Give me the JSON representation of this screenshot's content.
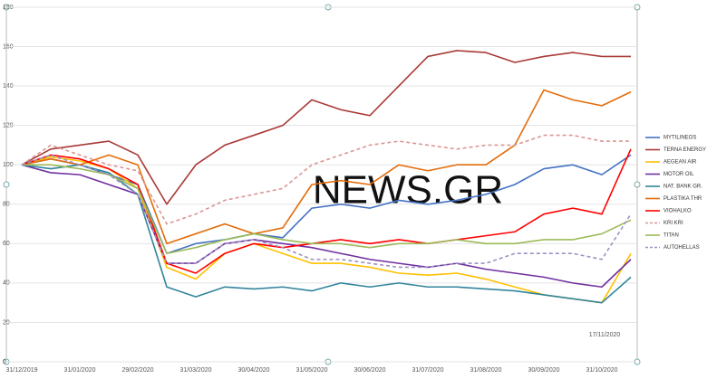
{
  "chart_data": {
    "type": "line",
    "watermark": "NEWS.GR",
    "annotation": "17/11/2020",
    "categories": [
      "31/12/2019",
      null,
      "31/01/2020",
      null,
      "29/02/2020",
      null,
      "31/03/2020",
      null,
      "30/04/2020",
      null,
      "31/05/2020",
      null,
      "30/06/2020",
      null,
      "31/07/2020",
      null,
      "31/08/2020",
      null,
      "30/09/2020",
      null,
      "31/10/2020",
      null
    ],
    "ylim": [
      0,
      180
    ],
    "yticks": [
      0,
      20,
      40,
      60,
      80,
      100,
      120,
      140,
      160,
      180
    ],
    "grid": true,
    "legend": "right",
    "series": [
      {
        "name": "MYTILINEOS",
        "color": "#4472c4",
        "values": [
          100,
          103,
          100,
          95,
          90,
          55,
          60,
          62,
          65,
          63,
          78,
          80,
          78,
          82,
          80,
          82,
          85,
          90,
          98,
          100,
          95,
          105
        ]
      },
      {
        "name": "TERNA ENERGY",
        "color": "#a93a36",
        "values": [
          100,
          108,
          110,
          112,
          105,
          80,
          100,
          110,
          115,
          120,
          133,
          128,
          125,
          140,
          155,
          158,
          157,
          152,
          155,
          157,
          155,
          155
        ]
      },
      {
        "name": "AEGEAN AIR",
        "color": "#ffc000",
        "values": [
          100,
          104,
          102,
          98,
          88,
          48,
          42,
          55,
          60,
          55,
          50,
          50,
          48,
          45,
          44,
          45,
          42,
          38,
          34,
          32,
          30,
          55
        ]
      },
      {
        "name": "MOTOR OIL",
        "color": "#7030a0",
        "values": [
          100,
          96,
          95,
          90,
          85,
          50,
          50,
          60,
          62,
          60,
          58,
          55,
          52,
          50,
          48,
          50,
          47,
          45,
          43,
          40,
          38,
          52
        ]
      },
      {
        "name": "NAT. BANK GR.",
        "color": "#31859c",
        "values": [
          100,
          98,
          100,
          96,
          85,
          38,
          33,
          38,
          37,
          38,
          36,
          40,
          38,
          40,
          38,
          38,
          37,
          36,
          34,
          32,
          30,
          43
        ]
      },
      {
        "name": "PLASTIKA THR",
        "color": "#e46c0a",
        "values": [
          100,
          103,
          100,
          105,
          100,
          60,
          65,
          70,
          65,
          68,
          90,
          92,
          90,
          100,
          97,
          100,
          100,
          110,
          138,
          133,
          130,
          137
        ]
      },
      {
        "name": "VIOHALKO",
        "color": "#ff0000",
        "values": [
          100,
          105,
          103,
          98,
          90,
          50,
          45,
          55,
          60,
          58,
          60,
          62,
          60,
          62,
          60,
          62,
          64,
          66,
          75,
          78,
          75,
          108
        ]
      },
      {
        "name": "KRI KRI",
        "color": "#da9694",
        "dashed": true,
        "values": [
          100,
          110,
          105,
          100,
          97,
          70,
          75,
          82,
          85,
          88,
          100,
          105,
          110,
          112,
          110,
          108,
          110,
          110,
          115,
          115,
          112,
          112
        ]
      },
      {
        "name": "TITAN",
        "color": "#9bbb59",
        "values": [
          100,
          100,
          98,
          95,
          88,
          55,
          58,
          62,
          65,
          62,
          60,
          60,
          58,
          60,
          60,
          62,
          60,
          60,
          62,
          62,
          65,
          72
        ]
      },
      {
        "name": "AUTOHELLAS",
        "color": "#9f8fc4",
        "dashed": true,
        "values": [
          100,
          105,
          100,
          95,
          85,
          50,
          50,
          60,
          62,
          58,
          52,
          52,
          50,
          48,
          48,
          50,
          50,
          55,
          55,
          55,
          52,
          75
        ]
      }
    ]
  }
}
